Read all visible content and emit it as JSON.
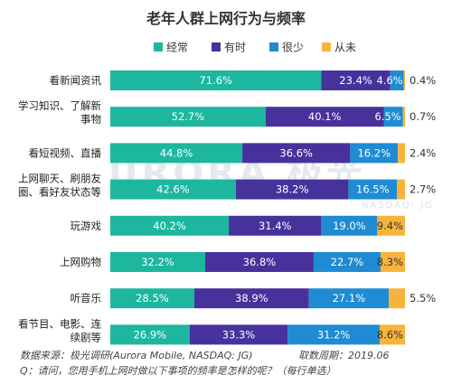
{
  "chart_data": {
    "type": "bar",
    "orientation": "horizontal",
    "stacked": true,
    "title": "老年人群上网行为与频率",
    "categories": [
      "看新闻资讯",
      "学习知识、了解新事物",
      "看短视频、直播",
      "上网聊天、刷朋友圈、看好友状态等",
      "玩游戏",
      "上网购物",
      "听音乐",
      "看节目、电影、连续剧等"
    ],
    "category_lines": [
      [
        "看新闻资讯"
      ],
      [
        "学习知识、了解新",
        "事物"
      ],
      [
        "看短视频、直播"
      ],
      [
        "上网聊天、刷朋友",
        "圈、看好友状态等"
      ],
      [
        "玩游戏"
      ],
      [
        "上网购物"
      ],
      [
        "听音乐"
      ],
      [
        "看节目、电影、连",
        "续剧等"
      ]
    ],
    "series": [
      {
        "name": "经常",
        "values": [
          71.6,
          52.7,
          44.8,
          42.6,
          40.2,
          32.2,
          28.5,
          26.9
        ]
      },
      {
        "name": "有时",
        "values": [
          23.4,
          40.1,
          36.6,
          38.2,
          31.4,
          36.8,
          38.9,
          33.3
        ]
      },
      {
        "name": "很少",
        "values": [
          4.6,
          6.5,
          16.2,
          16.5,
          19.0,
          22.7,
          27.1,
          31.2
        ]
      },
      {
        "name": "从未",
        "values": [
          0.4,
          0.7,
          2.4,
          2.7,
          9.4,
          8.3,
          5.5,
          8.6
        ]
      }
    ],
    "value_suffix": "%",
    "legend_position": "top",
    "grid": false
  },
  "colors": {
    "经常": "#1cb79e",
    "有时": "#47329c",
    "很少": "#1f8bd3",
    "从未": "#f7b43a"
  },
  "watermark": {
    "brand": "URORA 极光",
    "sub": "NASDAQ: JG"
  },
  "footer": {
    "source": "数据来源：极光调研(Aurora Mobile, NASDAQ: JG)",
    "period": "取数周期：2019.06",
    "question": "Q：请问，您用手机上网时做以下事项的频率是怎样的呢？（每行单选）"
  }
}
